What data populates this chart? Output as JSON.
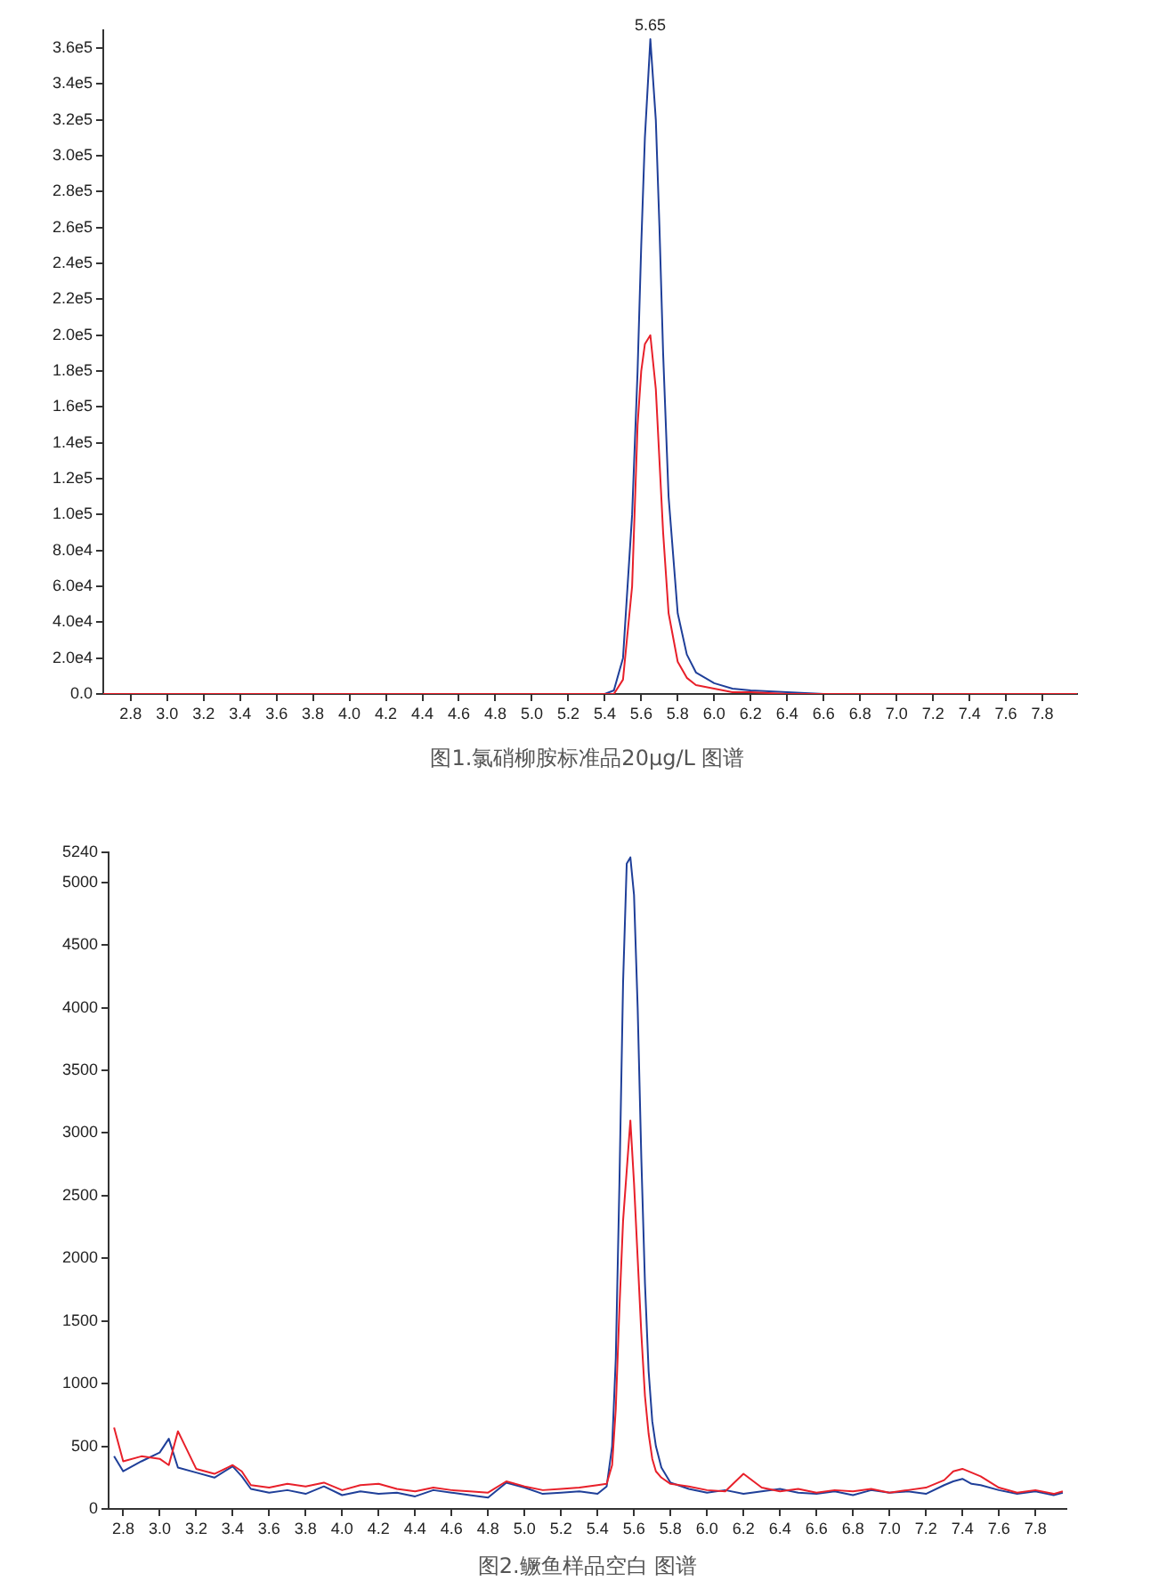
{
  "chart_data": [
    {
      "type": "line",
      "title": "图1.氯硝柳胺标准品20μg/L 图谱",
      "x": [
        2.65,
        2.8,
        3.0,
        4.0,
        5.0,
        5.4,
        5.45,
        5.5,
        5.55,
        5.58,
        5.6,
        5.62,
        5.65,
        5.68,
        5.7,
        5.72,
        5.75,
        5.8,
        5.85,
        5.9,
        6.0,
        6.1,
        6.2,
        6.4,
        6.6,
        7.0,
        7.5,
        7.99
      ],
      "series": [
        {
          "color": "#e8202a",
          "values": [
            0,
            0,
            0,
            0,
            0,
            0,
            0,
            8000,
            60000,
            150000,
            180000,
            195000,
            200000,
            170000,
            130000,
            90000,
            45000,
            18000,
            9000,
            5000,
            3000,
            1000,
            1000,
            0,
            0,
            0,
            0,
            0
          ]
        },
        {
          "color": "#1f3f99",
          "values": [
            null,
            null,
            null,
            null,
            null,
            0,
            2000,
            20000,
            100000,
            180000,
            250000,
            310000,
            365000,
            320000,
            260000,
            190000,
            110000,
            45000,
            22000,
            12000,
            6000,
            3000,
            2000,
            1000,
            0,
            0,
            null,
            null
          ]
        }
      ],
      "xlim": [
        2.65,
        7.99
      ],
      "xticks": [
        {
          "value": 2.8,
          "label": "2.8"
        },
        {
          "value": 3.0,
          "label": "3.0"
        },
        {
          "value": 3.2,
          "label": "3.2"
        },
        {
          "value": 3.4,
          "label": "3.4"
        },
        {
          "value": 3.6,
          "label": "3.6"
        },
        {
          "value": 3.8,
          "label": "3.8"
        },
        {
          "value": 4.0,
          "label": "4.0"
        },
        {
          "value": 4.2,
          "label": "4.2"
        },
        {
          "value": 4.4,
          "label": "4.4"
        },
        {
          "value": 4.6,
          "label": "4.6"
        },
        {
          "value": 4.8,
          "label": "4.8"
        },
        {
          "value": 5.0,
          "label": "5.0"
        },
        {
          "value": 5.2,
          "label": "5.2"
        },
        {
          "value": 5.4,
          "label": "5.4"
        },
        {
          "value": 5.6,
          "label": "5.6"
        },
        {
          "value": 5.8,
          "label": "5.8"
        },
        {
          "value": 6.0,
          "label": "6.0"
        },
        {
          "value": 6.2,
          "label": "6.2"
        },
        {
          "value": 6.4,
          "label": "6.4"
        },
        {
          "value": 6.6,
          "label": "6.6"
        },
        {
          "value": 6.8,
          "label": "6.8"
        },
        {
          "value": 7.0,
          "label": "7.0"
        },
        {
          "value": 7.2,
          "label": "7.2"
        },
        {
          "value": 7.4,
          "label": "7.4"
        },
        {
          "value": 7.6,
          "label": "7.6"
        },
        {
          "value": 7.8,
          "label": "7.8"
        }
      ],
      "ylim": [
        0,
        370000
      ],
      "yticks": [
        {
          "value": 0,
          "label": "0.0"
        },
        {
          "value": 20000,
          "label": "2.0e4"
        },
        {
          "value": 40000,
          "label": "4.0e4"
        },
        {
          "value": 60000,
          "label": "6.0e4"
        },
        {
          "value": 80000,
          "label": "8.0e4"
        },
        {
          "value": 100000,
          "label": "1.0e5"
        },
        {
          "value": 120000,
          "label": "1.2e5"
        },
        {
          "value": 140000,
          "label": "1.4e5"
        },
        {
          "value": 160000,
          "label": "1.6e5"
        },
        {
          "value": 180000,
          "label": "1.8e5"
        },
        {
          "value": 200000,
          "label": "2.0e5"
        },
        {
          "value": 220000,
          "label": "2.2e5"
        },
        {
          "value": 240000,
          "label": "2.4e5"
        },
        {
          "value": 260000,
          "label": "2.6e5"
        },
        {
          "value": 280000,
          "label": "2.8e5"
        },
        {
          "value": 300000,
          "label": "3.0e5"
        },
        {
          "value": 320000,
          "label": "3.2e5"
        },
        {
          "value": 340000,
          "label": "3.4e5"
        },
        {
          "value": 360000,
          "label": "3.6e5"
        }
      ],
      "annotations": [
        {
          "text": "5.65",
          "x": 5.65,
          "y": 365000
        }
      ],
      "grid": false,
      "legend": false,
      "marker": "none",
      "line_style": "solid"
    },
    {
      "type": "line",
      "title": "图2.鳜鱼样品空白 图谱",
      "x": [
        2.75,
        2.8,
        2.9,
        3.0,
        3.05,
        3.1,
        3.2,
        3.3,
        3.4,
        3.45,
        3.5,
        3.6,
        3.7,
        3.8,
        3.9,
        4.0,
        4.1,
        4.2,
        4.3,
        4.4,
        4.5,
        4.6,
        4.7,
        4.8,
        4.9,
        5.0,
        5.1,
        5.2,
        5.3,
        5.4,
        5.45,
        5.48,
        5.5,
        5.52,
        5.54,
        5.56,
        5.58,
        5.6,
        5.62,
        5.64,
        5.66,
        5.68,
        5.7,
        5.72,
        5.75,
        5.8,
        5.9,
        6.0,
        6.1,
        6.2,
        6.3,
        6.4,
        6.5,
        6.6,
        6.7,
        6.8,
        6.9,
        7.0,
        7.1,
        7.2,
        7.3,
        7.35,
        7.4,
        7.45,
        7.5,
        7.6,
        7.7,
        7.8,
        7.9,
        7.95
      ],
      "series": [
        {
          "color": "#e8202a",
          "values": [
            650,
            380,
            420,
            400,
            350,
            620,
            320,
            280,
            350,
            300,
            190,
            170,
            200,
            180,
            210,
            150,
            190,
            200,
            160,
            140,
            170,
            150,
            140,
            130,
            220,
            180,
            150,
            160,
            170,
            190,
            200,
            350,
            800,
            1600,
            2300,
            2700,
            3100,
            2600,
            2000,
            1400,
            900,
            600,
            400,
            300,
            250,
            200,
            180,
            150,
            140,
            280,
            170,
            140,
            160,
            130,
            150,
            140,
            160,
            130,
            150,
            170,
            230,
            300,
            320,
            290,
            260,
            170,
            130,
            150,
            120,
            140
          ]
        },
        {
          "color": "#1f3f99",
          "values": [
            420,
            300,
            380,
            450,
            560,
            330,
            290,
            250,
            340,
            260,
            160,
            130,
            150,
            120,
            180,
            110,
            140,
            120,
            130,
            100,
            150,
            130,
            110,
            90,
            210,
            170,
            120,
            130,
            140,
            120,
            180,
            500,
            1200,
            2600,
            4200,
            5150,
            5200,
            4900,
            4000,
            2800,
            1800,
            1100,
            700,
            500,
            330,
            210,
            160,
            130,
            150,
            120,
            140,
            160,
            130,
            120,
            140,
            110,
            150,
            130,
            140,
            120,
            190,
            220,
            240,
            200,
            190,
            150,
            120,
            140,
            110,
            130
          ]
        }
      ],
      "xlim": [
        2.72,
        7.97
      ],
      "xticks": [
        {
          "value": 2.8,
          "label": "2.8"
        },
        {
          "value": 3.0,
          "label": "3.0"
        },
        {
          "value": 3.2,
          "label": "3.2"
        },
        {
          "value": 3.4,
          "label": "3.4"
        },
        {
          "value": 3.6,
          "label": "3.6"
        },
        {
          "value": 3.8,
          "label": "3.8"
        },
        {
          "value": 4.0,
          "label": "4.0"
        },
        {
          "value": 4.2,
          "label": "4.2"
        },
        {
          "value": 4.4,
          "label": "4.4"
        },
        {
          "value": 4.6,
          "label": "4.6"
        },
        {
          "value": 4.8,
          "label": "4.8"
        },
        {
          "value": 5.0,
          "label": "5.0"
        },
        {
          "value": 5.2,
          "label": "5.2"
        },
        {
          "value": 5.4,
          "label": "5.4"
        },
        {
          "value": 5.6,
          "label": "5.6"
        },
        {
          "value": 5.8,
          "label": "5.8"
        },
        {
          "value": 6.0,
          "label": "6.0"
        },
        {
          "value": 6.2,
          "label": "6.2"
        },
        {
          "value": 6.4,
          "label": "6.4"
        },
        {
          "value": 6.6,
          "label": "6.6"
        },
        {
          "value": 6.8,
          "label": "6.8"
        },
        {
          "value": 7.0,
          "label": "7.0"
        },
        {
          "value": 7.2,
          "label": "7.2"
        },
        {
          "value": 7.4,
          "label": "7.4"
        },
        {
          "value": 7.6,
          "label": "7.6"
        },
        {
          "value": 7.8,
          "label": "7.8"
        }
      ],
      "ylim": [
        0,
        5240
      ],
      "yticks": [
        0,
        500,
        1000,
        1500,
        2000,
        2500,
        3000,
        3500,
        4000,
        4500,
        5000,
        5240
      ],
      "grid": false,
      "legend": false,
      "marker": "none",
      "line_style": "solid"
    }
  ]
}
